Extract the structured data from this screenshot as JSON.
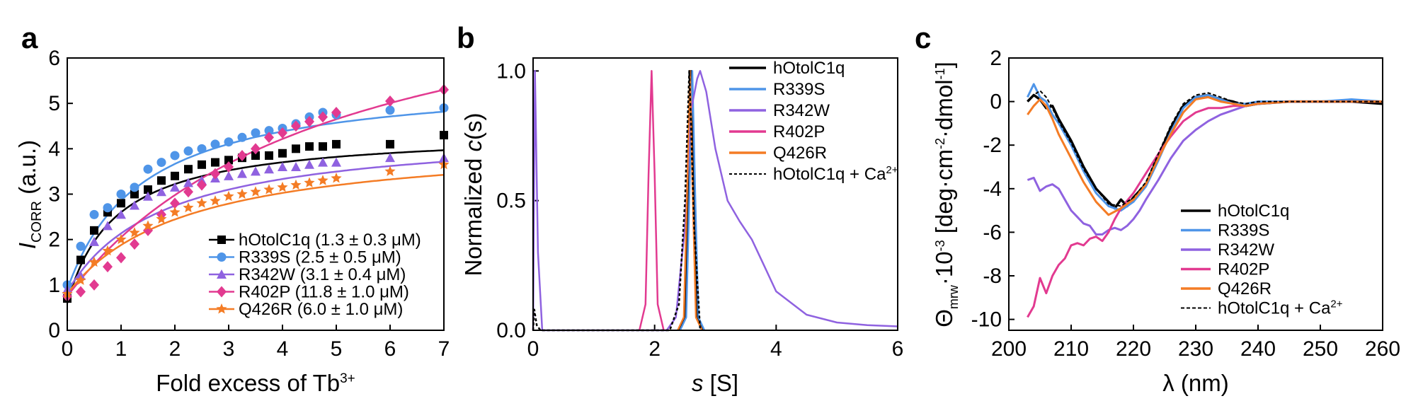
{
  "chart_data": [
    {
      "panel": "a",
      "type": "scatter",
      "xlabel": "Fold excess of Tb",
      "xlabel_sup": "3+",
      "ylabel_main": "I",
      "ylabel_sub": "CORR",
      "ylabel_unit": " (a.u.)",
      "xlim": [
        0,
        7
      ],
      "ylim": [
        0,
        6
      ],
      "xticks": [
        "0",
        "1",
        "2",
        "3",
        "4",
        "5",
        "6",
        "7"
      ],
      "yticks": [
        "0",
        "1",
        "2",
        "3",
        "4",
        "5",
        "6"
      ],
      "legend_position": "bottom-right",
      "series": [
        {
          "name": "hOtolC1q (1.3 ± 0.3 μM)",
          "color": "#000000",
          "marker": "square",
          "x": [
            0,
            0.25,
            0.5,
            0.75,
            1,
            1.25,
            1.5,
            1.75,
            2,
            2.25,
            2.5,
            2.75,
            3,
            3.25,
            3.5,
            3.75,
            4,
            4.25,
            4.5,
            4.75,
            5,
            6,
            7
          ],
          "y": [
            0.7,
            1.55,
            2.2,
            2.6,
            2.8,
            3.0,
            3.1,
            3.3,
            3.4,
            3.55,
            3.65,
            3.7,
            3.75,
            3.8,
            3.85,
            3.85,
            3.9,
            4.0,
            4.05,
            4.05,
            4.1,
            4.1,
            4.3
          ],
          "fit": {
            "y0": 0.6,
            "amax": 3.8,
            "kd": 0.9
          }
        },
        {
          "name": "R339S (2.5 ± 0.5 μM)",
          "color": "#4f95e8",
          "marker": "circle",
          "x": [
            0,
            0.25,
            0.5,
            0.75,
            1,
            1.25,
            1.5,
            1.75,
            2,
            2.25,
            2.5,
            2.75,
            3,
            3.25,
            3.5,
            3.75,
            4,
            4.25,
            4.5,
            4.75,
            5,
            6,
            7
          ],
          "y": [
            1.0,
            1.85,
            2.55,
            2.7,
            3.0,
            3.15,
            3.55,
            3.7,
            3.85,
            3.95,
            4.0,
            4.1,
            4.15,
            4.25,
            4.35,
            4.4,
            4.45,
            4.55,
            4.7,
            4.8,
            4.75,
            4.85,
            4.9
          ],
          "fit": {
            "y0": 0.9,
            "amax": 4.7,
            "kd": 1.4
          }
        },
        {
          "name": "R342W (3.1 ± 0.4 μM)",
          "color": "#8f62e0",
          "marker": "triangle",
          "x": [
            0,
            0.25,
            0.5,
            0.75,
            1,
            1.25,
            1.5,
            1.75,
            2,
            2.25,
            2.5,
            2.75,
            3,
            3.25,
            3.5,
            3.75,
            4,
            4.25,
            4.5,
            4.75,
            5,
            6,
            7
          ],
          "y": [
            0.9,
            1.2,
            1.95,
            2.3,
            2.55,
            2.75,
            2.95,
            3.05,
            3.15,
            3.25,
            3.3,
            3.35,
            3.4,
            3.45,
            3.5,
            3.55,
            3.6,
            3.6,
            3.65,
            3.7,
            3.7,
            3.8,
            3.8
          ],
          "fit": {
            "y0": 0.85,
            "amax": 3.6,
            "kd": 1.8
          }
        },
        {
          "name": "R402P (11.8 ± 1.0 μM)",
          "color": "#e23a90",
          "marker": "diamond",
          "x": [
            0,
            0.25,
            0.5,
            0.75,
            1,
            1.25,
            1.5,
            1.75,
            2,
            2.25,
            2.5,
            2.75,
            3,
            3.25,
            3.5,
            3.75,
            4,
            4.25,
            4.5,
            4.75,
            5,
            6,
            7
          ],
          "y": [
            0.75,
            0.85,
            1.0,
            1.4,
            1.6,
            1.9,
            2.2,
            2.55,
            2.8,
            3.05,
            3.2,
            3.45,
            3.6,
            3.85,
            4.0,
            4.25,
            4.35,
            4.5,
            4.6,
            4.7,
            4.8,
            5.05,
            5.3
          ],
          "fit": {
            "y0": 0.75,
            "amax": 7.8,
            "kd": 5.0
          }
        },
        {
          "name": "Q426R (6.0 ± 1.0 μM)",
          "color": "#f47c25",
          "marker": "star",
          "x": [
            0,
            0.25,
            0.5,
            0.75,
            1,
            1.25,
            1.5,
            1.75,
            2,
            2.25,
            2.5,
            2.75,
            3,
            3.25,
            3.5,
            3.75,
            4,
            4.25,
            4.5,
            4.75,
            5,
            6,
            7
          ],
          "y": [
            0.8,
            1.1,
            1.5,
            1.75,
            2.0,
            2.15,
            2.3,
            2.45,
            2.6,
            2.7,
            2.8,
            2.85,
            2.95,
            3.0,
            3.05,
            3.1,
            3.15,
            3.2,
            3.25,
            3.3,
            3.35,
            3.5,
            3.65
          ],
          "fit": {
            "y0": 0.8,
            "amax": 3.45,
            "kd": 2.2
          }
        }
      ]
    },
    {
      "panel": "b",
      "type": "line",
      "xlabel_main": "s",
      "xlabel_unit": " [S]",
      "ylabel_pre": "Normalized ",
      "ylabel_main": "c",
      "ylabel_post": "(s)",
      "xlim": [
        0,
        6
      ],
      "ylim": [
        0,
        1.05
      ],
      "xticks": [
        "0",
        "2",
        "4",
        "6"
      ],
      "yticks": [
        "0.0",
        "0.5",
        "1.0"
      ],
      "legend_position": "top-right",
      "series": [
        {
          "name": "hOtolC1q",
          "color": "#000000",
          "dash": "",
          "x": [
            2.4,
            2.5,
            2.55,
            2.6,
            2.65,
            2.7,
            2.8
          ],
          "y": [
            0,
            0.05,
            0.5,
            1.0,
            0.5,
            0.05,
            0
          ]
        },
        {
          "name": "R339S",
          "color": "#4f95e8",
          "dash": "",
          "x": [
            2.42,
            2.52,
            2.57,
            2.62,
            2.67,
            2.72,
            2.82
          ],
          "y": [
            0,
            0.05,
            0.5,
            1.0,
            0.5,
            0.05,
            0
          ]
        },
        {
          "name": "R342W",
          "color": "#8f62e0",
          "dash": "",
          "x": [
            0,
            0.03,
            0.08,
            0.15,
            2.2,
            2.35,
            2.5,
            2.6,
            2.7,
            2.75,
            2.85,
            3.0,
            3.2,
            3.4,
            3.6,
            3.8,
            4.0,
            4.5,
            5.0,
            5.5,
            6.0
          ],
          "y": [
            0,
            1.0,
            0.3,
            0,
            0,
            0.05,
            0.4,
            0.85,
            0.97,
            1.0,
            0.92,
            0.7,
            0.5,
            0.42,
            0.35,
            0.25,
            0.15,
            0.06,
            0.03,
            0.02,
            0.015
          ]
        },
        {
          "name": "R402P",
          "color": "#e23a90",
          "dash": "",
          "x": [
            1.75,
            1.85,
            1.9,
            1.95,
            2.0,
            2.05,
            2.15
          ],
          "y": [
            0,
            0.1,
            0.6,
            1.0,
            0.6,
            0.1,
            0
          ]
        },
        {
          "name": "Q426R",
          "color": "#f47c25",
          "dash": "",
          "x": [
            2.38,
            2.48,
            2.53,
            2.58,
            2.63,
            2.68,
            2.78
          ],
          "y": [
            0,
            0.05,
            0.5,
            1.0,
            0.5,
            0.05,
            0
          ]
        },
        {
          "name": "hOtolC1q + Ca",
          "sup": "2+",
          "color": "#000000",
          "dash": "4,3",
          "x": [
            0,
            0.02,
            0.06,
            0.12,
            2.25,
            2.4,
            2.5,
            2.57,
            2.65,
            2.75
          ],
          "y": [
            0,
            0.08,
            0.02,
            0,
            0,
            0.1,
            0.5,
            1.0,
            0.4,
            0
          ]
        }
      ]
    },
    {
      "panel": "c",
      "type": "line",
      "xlabel": "λ (nm)",
      "ylabel": "Θmrw·10⁻³ [deg·cm⁻²·dmol⁻¹]",
      "ylabel_theta": "Θ",
      "ylabel_sub": "mrw",
      "ylabel_mid": "·10",
      "ylabel_exp": "-3",
      "ylabel_unit": " [deg·cm",
      "ylabel_exp2": "-2",
      "ylabel_unit2": "·dmol",
      "ylabel_exp3": "-1",
      "ylabel_end": "]",
      "xlim": [
        200,
        260
      ],
      "ylim": [
        -10.5,
        2
      ],
      "xticks": [
        "200",
        "210",
        "220",
        "230",
        "240",
        "250",
        "260"
      ],
      "yticks": [
        "-10",
        "-8",
        "-6",
        "-4",
        "-2",
        "0",
        "2"
      ],
      "legend_position": "bottom-right",
      "series": [
        {
          "name": "hOtolC1q",
          "color": "#000000",
          "dash": "",
          "width": 3.5,
          "x": [
            203,
            204,
            205,
            206,
            207,
            208,
            210,
            212,
            214,
            216,
            217,
            218,
            219,
            220,
            222,
            224,
            226,
            228,
            230,
            232,
            234,
            236,
            238,
            240,
            245,
            250,
            255,
            260
          ],
          "y": [
            0,
            0.3,
            0.1,
            -0.3,
            -0.2,
            -0.8,
            -1.8,
            -3.0,
            -4.0,
            -4.6,
            -4.9,
            -4.5,
            -4.8,
            -4.4,
            -3.8,
            -2.5,
            -1.2,
            -0.2,
            0.2,
            0.3,
            0.1,
            0,
            -0.2,
            -0.1,
            0,
            0,
            0,
            -0.1
          ]
        },
        {
          "name": "R339S",
          "color": "#4f95e8",
          "dash": "",
          "width": 3,
          "x": [
            203,
            204,
            205,
            206,
            207,
            208,
            210,
            212,
            214,
            216,
            218,
            220,
            222,
            224,
            226,
            228,
            230,
            232,
            234,
            236,
            238,
            240,
            245,
            250,
            255,
            260
          ],
          "y": [
            0.2,
            0.8,
            0.2,
            0,
            -0.6,
            -1.0,
            -2.0,
            -3.2,
            -4.2,
            -4.8,
            -5.0,
            -4.6,
            -3.9,
            -2.7,
            -1.4,
            -0.3,
            0.2,
            0.3,
            0.1,
            -0.1,
            -0.1,
            0,
            0,
            0,
            0.1,
            0
          ]
        },
        {
          "name": "R342W",
          "color": "#8f62e0",
          "dash": "",
          "width": 3,
          "x": [
            203,
            204,
            205,
            206,
            207,
            208,
            209,
            210,
            211,
            212,
            213,
            214,
            215,
            216,
            217,
            218,
            219,
            220,
            221,
            222,
            224,
            226,
            228,
            230,
            232,
            234,
            236,
            238,
            240,
            245,
            250,
            255,
            260
          ],
          "y": [
            -3.6,
            -3.5,
            -4.1,
            -3.9,
            -3.8,
            -4.0,
            -4.5,
            -5.0,
            -5.3,
            -5.6,
            -5.7,
            -6.1,
            -6.1,
            -5.9,
            -5.8,
            -5.9,
            -5.7,
            -5.4,
            -5.0,
            -4.5,
            -3.6,
            -2.6,
            -1.8,
            -1.3,
            -0.9,
            -0.6,
            -0.4,
            -0.2,
            -0.1,
            0,
            0,
            0,
            0
          ]
        },
        {
          "name": "R402P",
          "color": "#e23a90",
          "dash": "",
          "width": 3,
          "x": [
            203,
            204,
            205,
            206,
            207,
            208,
            209,
            210,
            211,
            212,
            213,
            214,
            215,
            216,
            217,
            218,
            220,
            222,
            224,
            226,
            228,
            230,
            232,
            234,
            236,
            238,
            240,
            245,
            250,
            255,
            260
          ],
          "y": [
            -9.9,
            -9.4,
            -8.1,
            -8.8,
            -8.0,
            -7.5,
            -7.2,
            -6.6,
            -6.5,
            -6.6,
            -6.3,
            -6.2,
            -6.4,
            -6.0,
            -5.4,
            -4.9,
            -4.2,
            -3.3,
            -2.4,
            -1.6,
            -0.9,
            -0.5,
            -0.3,
            -0.3,
            -0.2,
            -0.2,
            -0.1,
            0,
            0,
            0,
            0
          ]
        },
        {
          "name": "Q426R",
          "color": "#f47c25",
          "dash": "",
          "width": 3,
          "x": [
            203,
            204,
            205,
            206,
            207,
            208,
            210,
            212,
            214,
            216,
            218,
            220,
            222,
            224,
            226,
            228,
            230,
            232,
            234,
            236,
            238,
            240,
            245,
            250,
            255,
            260
          ],
          "y": [
            -0.6,
            -0.2,
            0.1,
            -0.2,
            -0.8,
            -1.5,
            -2.6,
            -3.7,
            -4.6,
            -5.2,
            -4.9,
            -4.5,
            -3.8,
            -2.6,
            -1.5,
            -0.5,
            0.1,
            0.2,
            0,
            -0.1,
            -0.2,
            -0.1,
            0,
            0,
            0,
            0
          ]
        },
        {
          "name": "hOtolC1q + Ca",
          "sup": "2+",
          "color": "#000000",
          "dash": "5,3",
          "width": 2,
          "x": [
            203,
            204,
            205,
            206,
            207,
            208,
            210,
            212,
            214,
            216,
            218,
            220,
            222,
            224,
            226,
            228,
            230,
            232,
            234,
            236,
            238,
            240,
            245,
            250,
            255,
            260
          ],
          "y": [
            0,
            0.3,
            0.5,
            0.2,
            -0.3,
            -0.9,
            -1.9,
            -3.1,
            -4.0,
            -4.7,
            -4.8,
            -4.4,
            -3.7,
            -2.4,
            -1.1,
            -0.1,
            0.3,
            0.4,
            0.2,
            0,
            -0.1,
            0,
            0,
            0,
            0,
            0
          ]
        }
      ]
    }
  ]
}
